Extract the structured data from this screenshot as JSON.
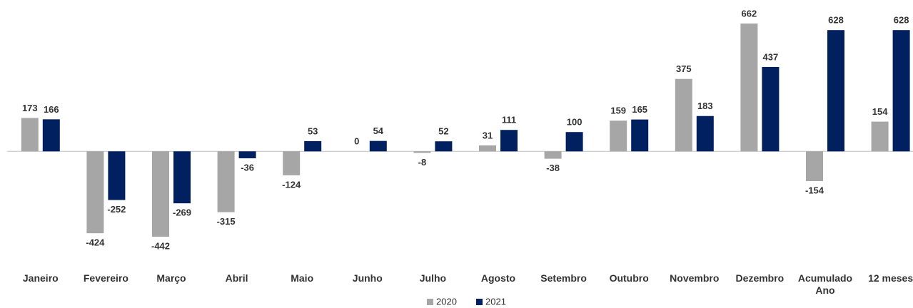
{
  "chart_data": {
    "type": "bar",
    "categories": [
      "Janeiro",
      "Fevereiro",
      "Março",
      "Abril",
      "Maio",
      "Junho",
      "Julho",
      "Agosto",
      "Setembro",
      "Outubro",
      "Novembro",
      "Dezembro",
      "Acumulado Ano",
      "12 meses"
    ],
    "series": [
      {
        "name": "2020",
        "color": "#a6a6a6",
        "values": [
          173,
          -424,
          -442,
          -315,
          -124,
          0,
          -8,
          31,
          -38,
          159,
          375,
          662,
          -154,
          154
        ]
      },
      {
        "name": "2021",
        "color": "#002060",
        "values": [
          166,
          -252,
          -269,
          -36,
          53,
          54,
          52,
          111,
          100,
          165,
          183,
          437,
          628,
          628
        ]
      }
    ]
  }
}
